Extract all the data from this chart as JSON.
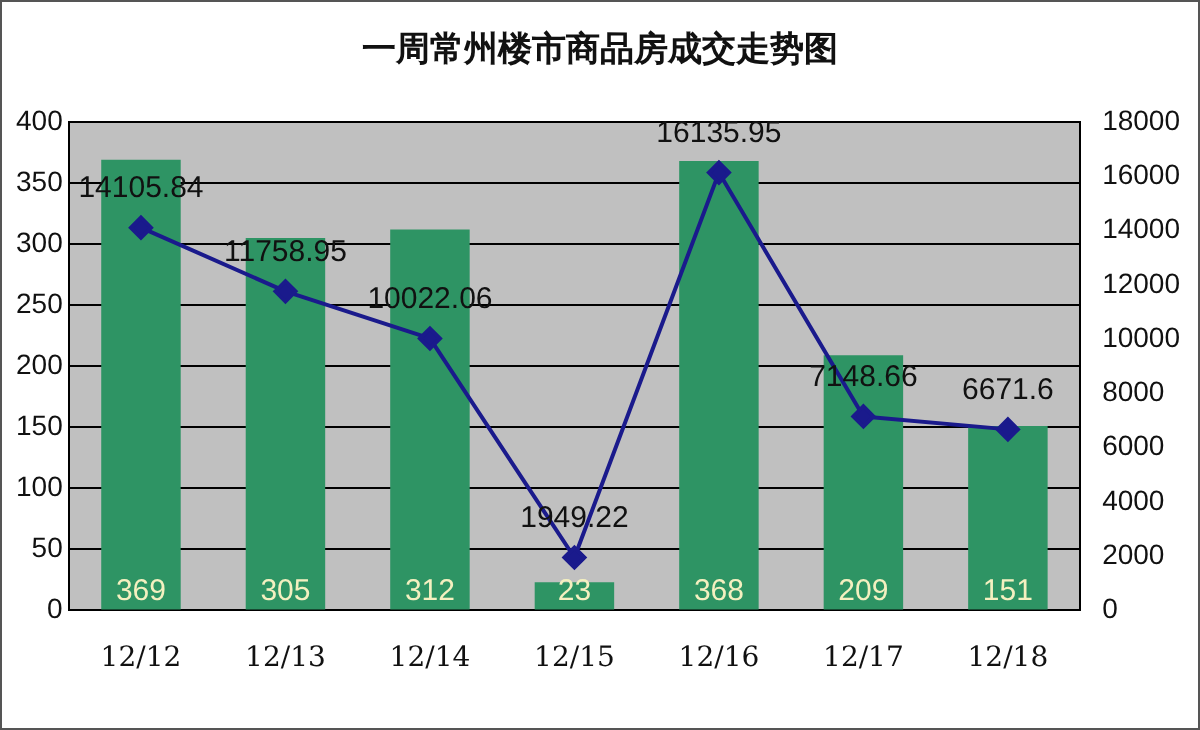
{
  "chart_data": {
    "type": "bar",
    "title": "一周常州楼市商品房成交走势图",
    "categories": [
      "12/12",
      "12/13",
      "12/14",
      "12/15",
      "12/16",
      "12/17",
      "12/18"
    ],
    "series": [
      {
        "color": "#2e9464",
        "values": [
          369,
          305,
          312,
          23,
          368,
          209,
          151
        ]
      },
      {
        "type": "line",
        "axis": "y2",
        "color": "#1a1a8c",
        "values": [
          14105.84,
          11758.95,
          10022.06,
          1949.22,
          16135.95,
          7148.66,
          6671.6
        ]
      }
    ],
    "ylim": [
      0,
      400
    ],
    "yticks": [
      0,
      50,
      100,
      150,
      200,
      250,
      300,
      350,
      400
    ],
    "y2lim": [
      0,
      18000
    ],
    "y2ticks": [
      0,
      2000,
      4000,
      6000,
      8000,
      10000,
      12000,
      14000,
      16000,
      18000
    ],
    "grid": "y",
    "marker": "diamond",
    "data_labels": true
  }
}
